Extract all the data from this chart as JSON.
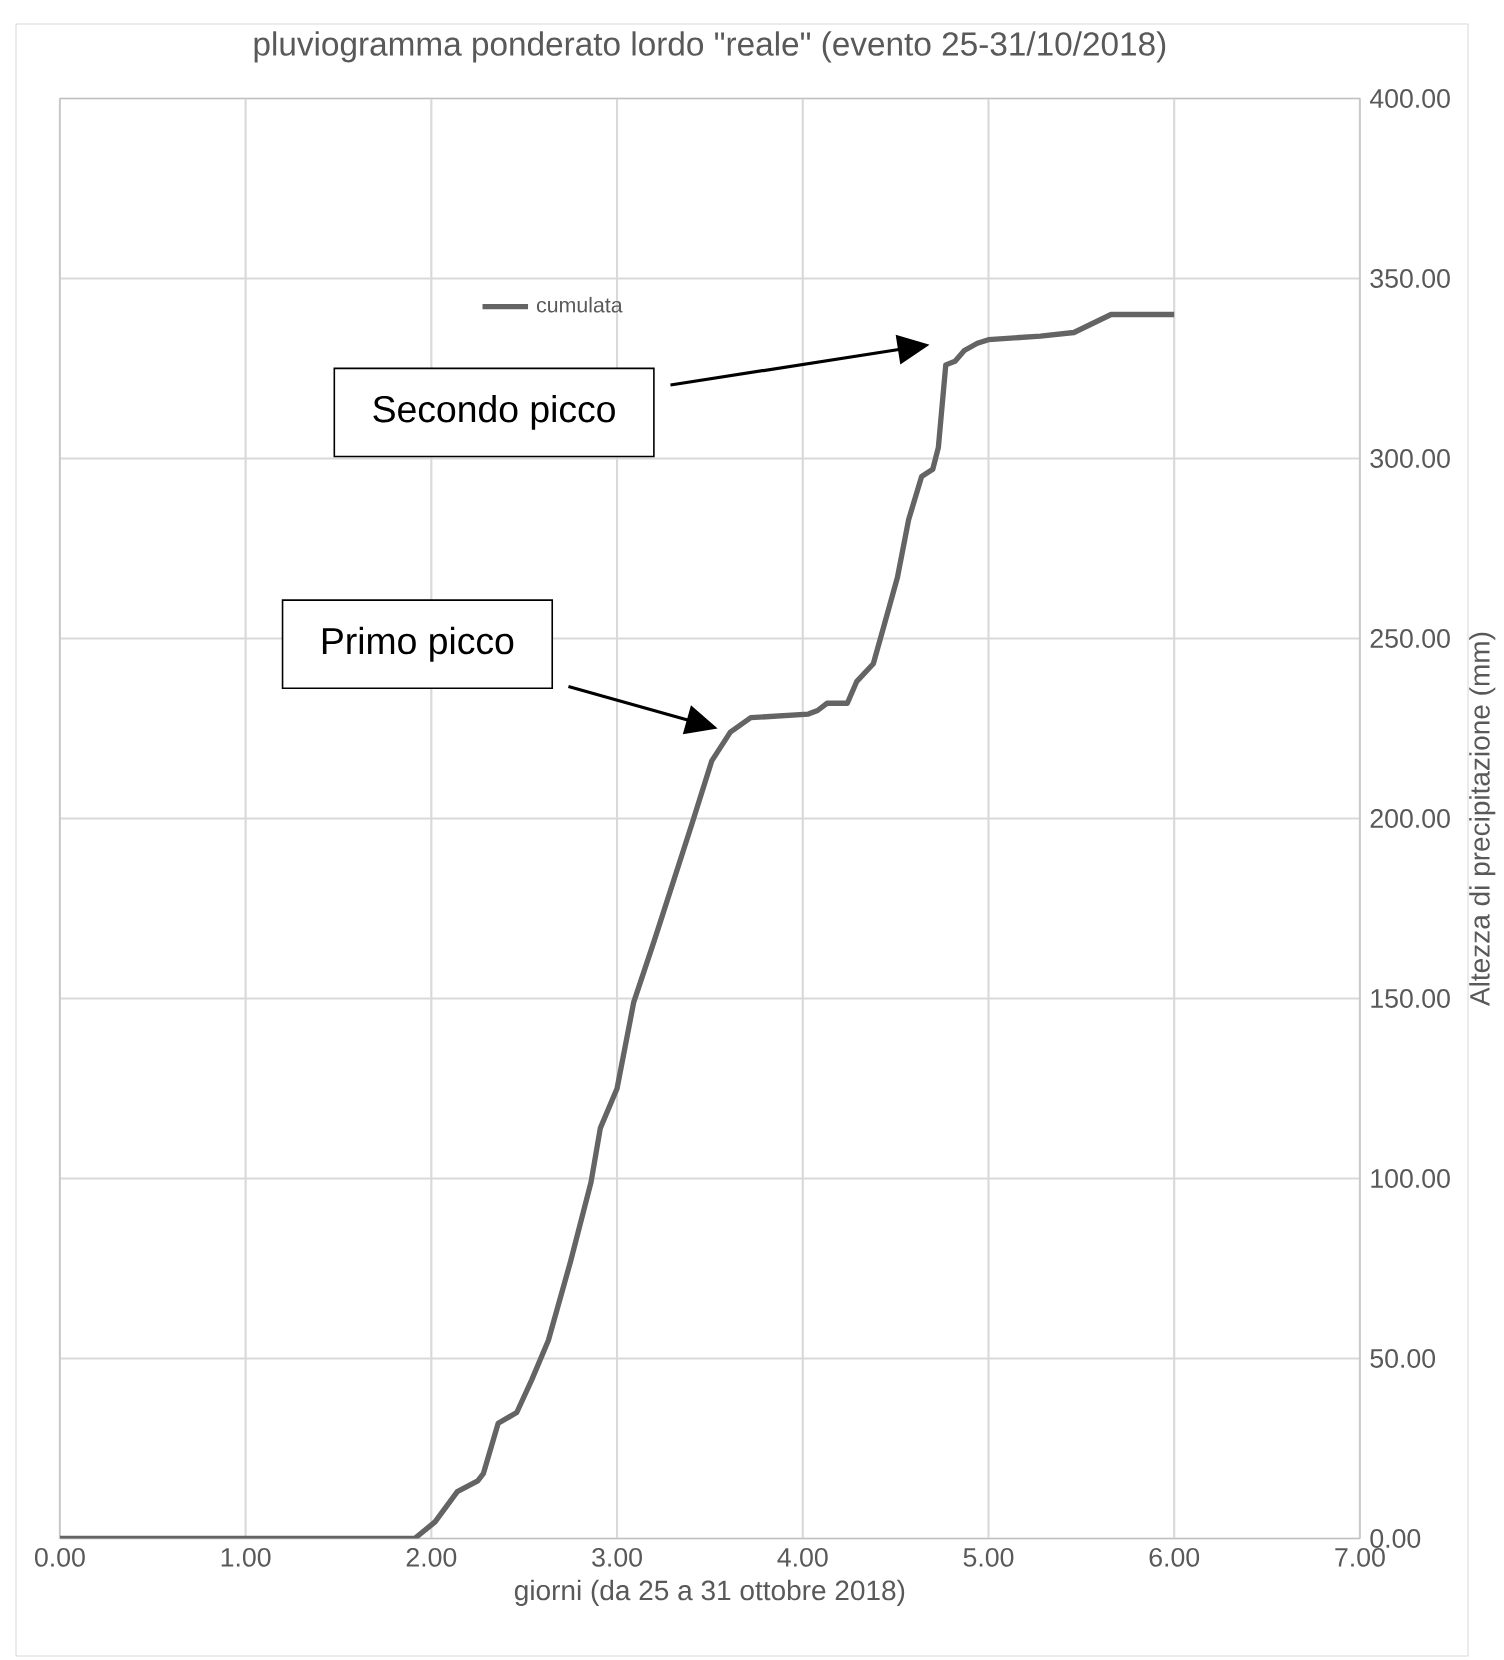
{
  "chart_data": {
    "type": "line",
    "title": "pluviogramma ponderato lordo \"reale\" (evento 25-31/10/2018)",
    "xlabel": "giorni (da 25 a 31 ottobre 2018)",
    "ylabel": "Altezza di precipitazione (mm)",
    "series": [
      {
        "name": "cumulata",
        "color": "#646464",
        "x": [
          0,
          1.91,
          2.02,
          2.14,
          2.25,
          2.28,
          2.36,
          2.46,
          2.54,
          2.63,
          2.75,
          2.86,
          2.91,
          3.0,
          3.09,
          3.2,
          3.4,
          3.51,
          3.61,
          3.72,
          4.03,
          4.08,
          4.13,
          4.24,
          4.29,
          4.38,
          4.44,
          4.51,
          4.57,
          4.64,
          4.7,
          4.73,
          4.77,
          4.82,
          4.87,
          4.94,
          5.0,
          5.28,
          5.46,
          5.66,
          6.0
        ],
        "values": [
          0,
          0,
          4.6,
          13,
          16,
          18,
          32,
          35,
          44,
          55,
          77,
          99,
          114,
          125,
          149,
          166,
          198,
          216,
          224,
          228,
          229,
          230,
          232,
          232,
          238,
          243,
          254,
          267,
          283,
          295,
          297,
          303,
          326,
          327,
          330,
          332,
          333,
          334,
          335,
          340,
          340
        ]
      }
    ],
    "xlim": [
      0,
      7
    ],
    "ylim": [
      0,
      400
    ],
    "xticks": [
      {
        "value": 0,
        "label": "0.00"
      },
      {
        "value": 1,
        "label": "1.00"
      },
      {
        "value": 2,
        "label": "2.00"
      },
      {
        "value": 3,
        "label": "3.00"
      },
      {
        "value": 4,
        "label": "4.00"
      },
      {
        "value": 5,
        "label": "5.00"
      },
      {
        "value": 6,
        "label": "6.00"
      },
      {
        "value": 7,
        "label": "7.00"
      }
    ],
    "yticks": [
      {
        "value": 0,
        "label": "0.00"
      },
      {
        "value": 50,
        "label": "50.00"
      },
      {
        "value": 100,
        "label": "100.00"
      },
      {
        "value": 150,
        "label": "150.00"
      },
      {
        "value": 200,
        "label": "200.00"
      },
      {
        "value": 250,
        "label": "250.00"
      },
      {
        "value": 300,
        "label": "300.00"
      },
      {
        "value": 350,
        "label": "350.00"
      },
      {
        "value": 400,
        "label": "400.00"
      }
    ],
    "grid": true,
    "legend": "top",
    "marker": "none",
    "line_style": "solid",
    "annotations": [
      "Secondo picco",
      "Primo picco"
    ]
  }
}
